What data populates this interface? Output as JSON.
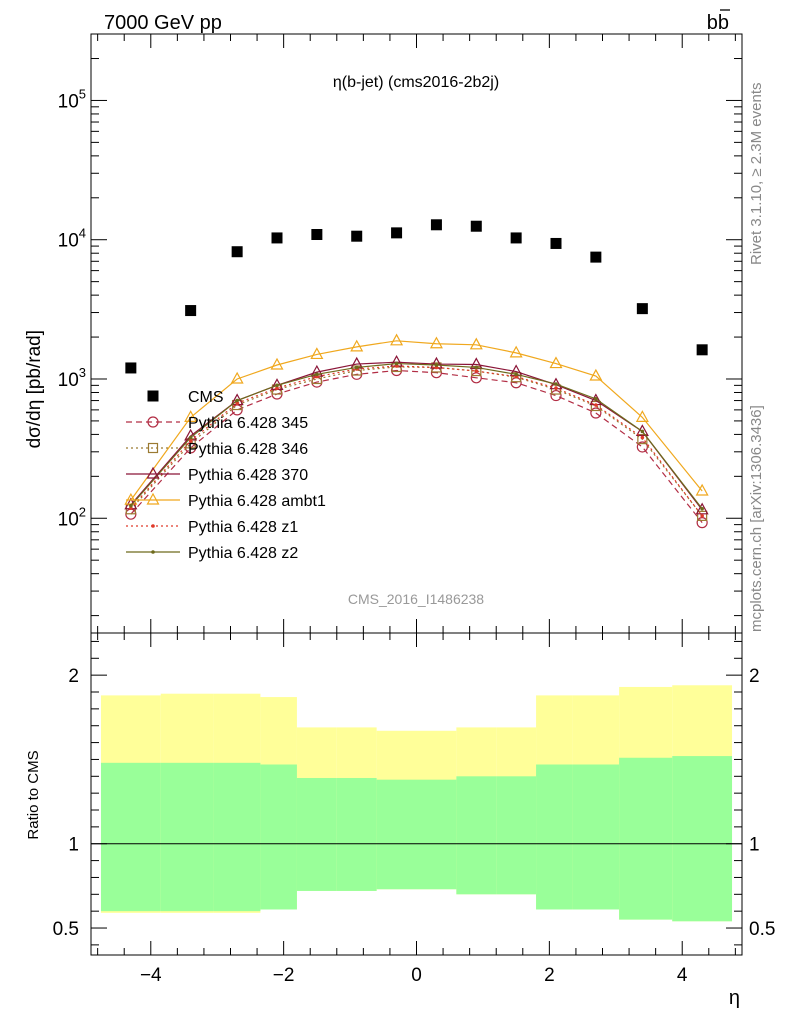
{
  "header": {
    "left": "7000 GeV pp",
    "right": "b",
    "right_bar": "b"
  },
  "side_text": {
    "rivet": "Rivet 3.1.10, ≥ 2.3M events",
    "mcplots": "mcplots.cern.ch [arXiv:1306.3436]"
  },
  "watermark": "CMS_2016_I1486238",
  "chart_data": [
    {
      "type": "scatter",
      "title": "η(b-jet) (cms2016-2b2j)",
      "ylabel": "dσ/dη [pb/rad]",
      "yscale": "log",
      "xlim": [
        -4.9,
        4.9
      ],
      "ylim": [
        15,
        300000
      ],
      "x_ticks": [
        -4,
        -2,
        0,
        2,
        4
      ],
      "y_tick_labels": [
        {
          "value": 100,
          "base": "10",
          "exp": "2"
        },
        {
          "value": 1000,
          "base": "10",
          "exp": "3"
        },
        {
          "value": 10000,
          "base": "10",
          "exp": "4"
        },
        {
          "value": 100000,
          "base": "10",
          "exp": "5"
        }
      ],
      "legend_placement": "center-left",
      "x": [
        -4.3,
        -3.4,
        -2.7,
        -2.1,
        -1.5,
        -0.9,
        -0.3,
        0.3,
        0.9,
        1.5,
        2.1,
        2.7,
        3.4,
        4.3
      ],
      "series": [
        {
          "name": "CMS",
          "color": "#000000",
          "marker": "square",
          "style": "none",
          "values": [
            1200,
            3100,
            8200,
            10300,
            10900,
            10600,
            11200,
            12800,
            12500,
            10300,
            9400,
            7500,
            3200,
            1620
          ]
        },
        {
          "name": "Pythia 6.428 345",
          "color": "#b22d44",
          "marker": "circle-open",
          "style": "dashed",
          "values": [
            107,
            320,
            600,
            780,
            950,
            1080,
            1150,
            1110,
            1020,
            940,
            760,
            570,
            325,
            93
          ]
        },
        {
          "name": "Pythia 6.428 346",
          "color": "#9b7a32",
          "marker": "square-open",
          "style": "dotted",
          "values": [
            116,
            345,
            650,
            840,
            1000,
            1150,
            1220,
            1210,
            1140,
            1030,
            840,
            640,
            370,
            104
          ]
        },
        {
          "name": "Pythia 6.428 370",
          "color": "#8b1538",
          "marker": "triangle-open",
          "style": "solid",
          "values": [
            125,
            390,
            700,
            900,
            1120,
            1280,
            1320,
            1280,
            1270,
            1130,
            910,
            700,
            420,
            115
          ]
        },
        {
          "name": "Pythia 6.428 ambt1",
          "color": "#f0a81e",
          "marker": "triangle-open",
          "style": "solid",
          "values": [
            135,
            530,
            1000,
            1260,
            1500,
            1700,
            1880,
            1790,
            1760,
            1540,
            1290,
            1050,
            530,
            157
          ]
        },
        {
          "name": "Pythia 6.428 z1",
          "color": "#e03a2a",
          "marker": "dot",
          "style": "dotted",
          "values": [
            118,
            360,
            670,
            860,
            1040,
            1180,
            1240,
            1210,
            1140,
            1040,
            860,
            650,
            380,
            104
          ]
        },
        {
          "name": "Pythia 6.428 z2",
          "color": "#6e6a1c",
          "marker": "dot",
          "style": "solid",
          "values": [
            123,
            380,
            700,
            900,
            1080,
            1210,
            1290,
            1260,
            1210,
            1080,
            920,
            720,
            420,
            117
          ]
        }
      ]
    },
    {
      "type": "area",
      "xlabel": "η",
      "ylabel": "Ratio to CMS",
      "xlim": [
        -4.9,
        4.9
      ],
      "ylim": [
        0.34,
        2.25
      ],
      "x_ticks": [
        -4,
        -2,
        0,
        2,
        4
      ],
      "y_ticks": [
        0.5,
        1,
        2
      ],
      "reference_line": 1,
      "bins": [
        -4.75,
        -3.85,
        -3.05,
        -2.35,
        -1.8,
        -1.2,
        -0.6,
        0,
        0.6,
        1.2,
        1.8,
        2.35,
        3.05,
        3.85,
        4.75
      ],
      "band_outer": {
        "color": "#ffff99",
        "low": [
          0.59,
          0.59,
          0.59,
          0.61,
          0.72,
          0.72,
          0.73,
          0.73,
          0.7,
          0.7,
          0.61,
          0.61,
          0.55,
          0.54
        ],
        "high": [
          1.88,
          1.89,
          1.89,
          1.87,
          1.69,
          1.69,
          1.67,
          1.67,
          1.69,
          1.69,
          1.88,
          1.88,
          1.93,
          1.94
        ]
      },
      "band_inner": {
        "color": "#99ff99",
        "low": [
          0.6,
          0.6,
          0.6,
          0.61,
          0.72,
          0.72,
          0.73,
          0.73,
          0.7,
          0.7,
          0.61,
          0.61,
          0.55,
          0.54
        ],
        "high": [
          1.48,
          1.48,
          1.48,
          1.47,
          1.39,
          1.39,
          1.38,
          1.38,
          1.4,
          1.4,
          1.47,
          1.47,
          1.51,
          1.52
        ]
      }
    }
  ]
}
